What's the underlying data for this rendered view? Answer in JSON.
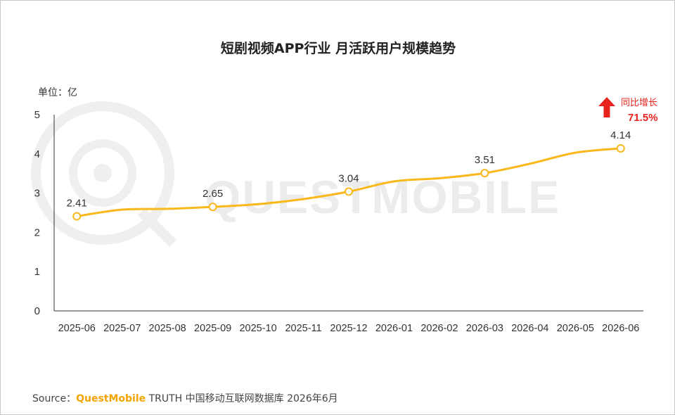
{
  "chart_data": {
    "type": "line",
    "title": "短剧视频APP行业 月活跃用户规模趋势",
    "unit_label": "单位：亿",
    "categories": [
      "2025-06",
      "2025-07",
      "2025-08",
      "2025-09",
      "2025-10",
      "2025-11",
      "2025-12",
      "2026-01",
      "2026-02",
      "2026-03",
      "2026-04",
      "2026-05",
      "2026-06"
    ],
    "series": [
      {
        "values": [
          2.41,
          2.58,
          2.6,
          2.65,
          2.72,
          2.85,
          3.04,
          3.3,
          3.38,
          3.51,
          3.75,
          4.03,
          4.14
        ]
      }
    ],
    "labeled_indices": [
      0,
      3,
      6,
      9,
      12
    ],
    "data_labels": [
      "2.41",
      "2.65",
      "3.04",
      "3.51",
      "4.14"
    ],
    "ylim": [
      0,
      5
    ],
    "yticks": [
      "0",
      "1",
      "2",
      "3",
      "4",
      "5"
    ],
    "grid": false,
    "line_color": "#f9b81b",
    "annotation": {
      "label": "同比增长",
      "value": "71.5%",
      "color": "#e8231e"
    }
  },
  "watermark": {
    "text": "QUESTMOBILE"
  },
  "source": {
    "prefix": "Source：",
    "brand": "QuestMobile",
    "rest": " TRUTH 中国移动互联网数据库 2026年6月"
  }
}
